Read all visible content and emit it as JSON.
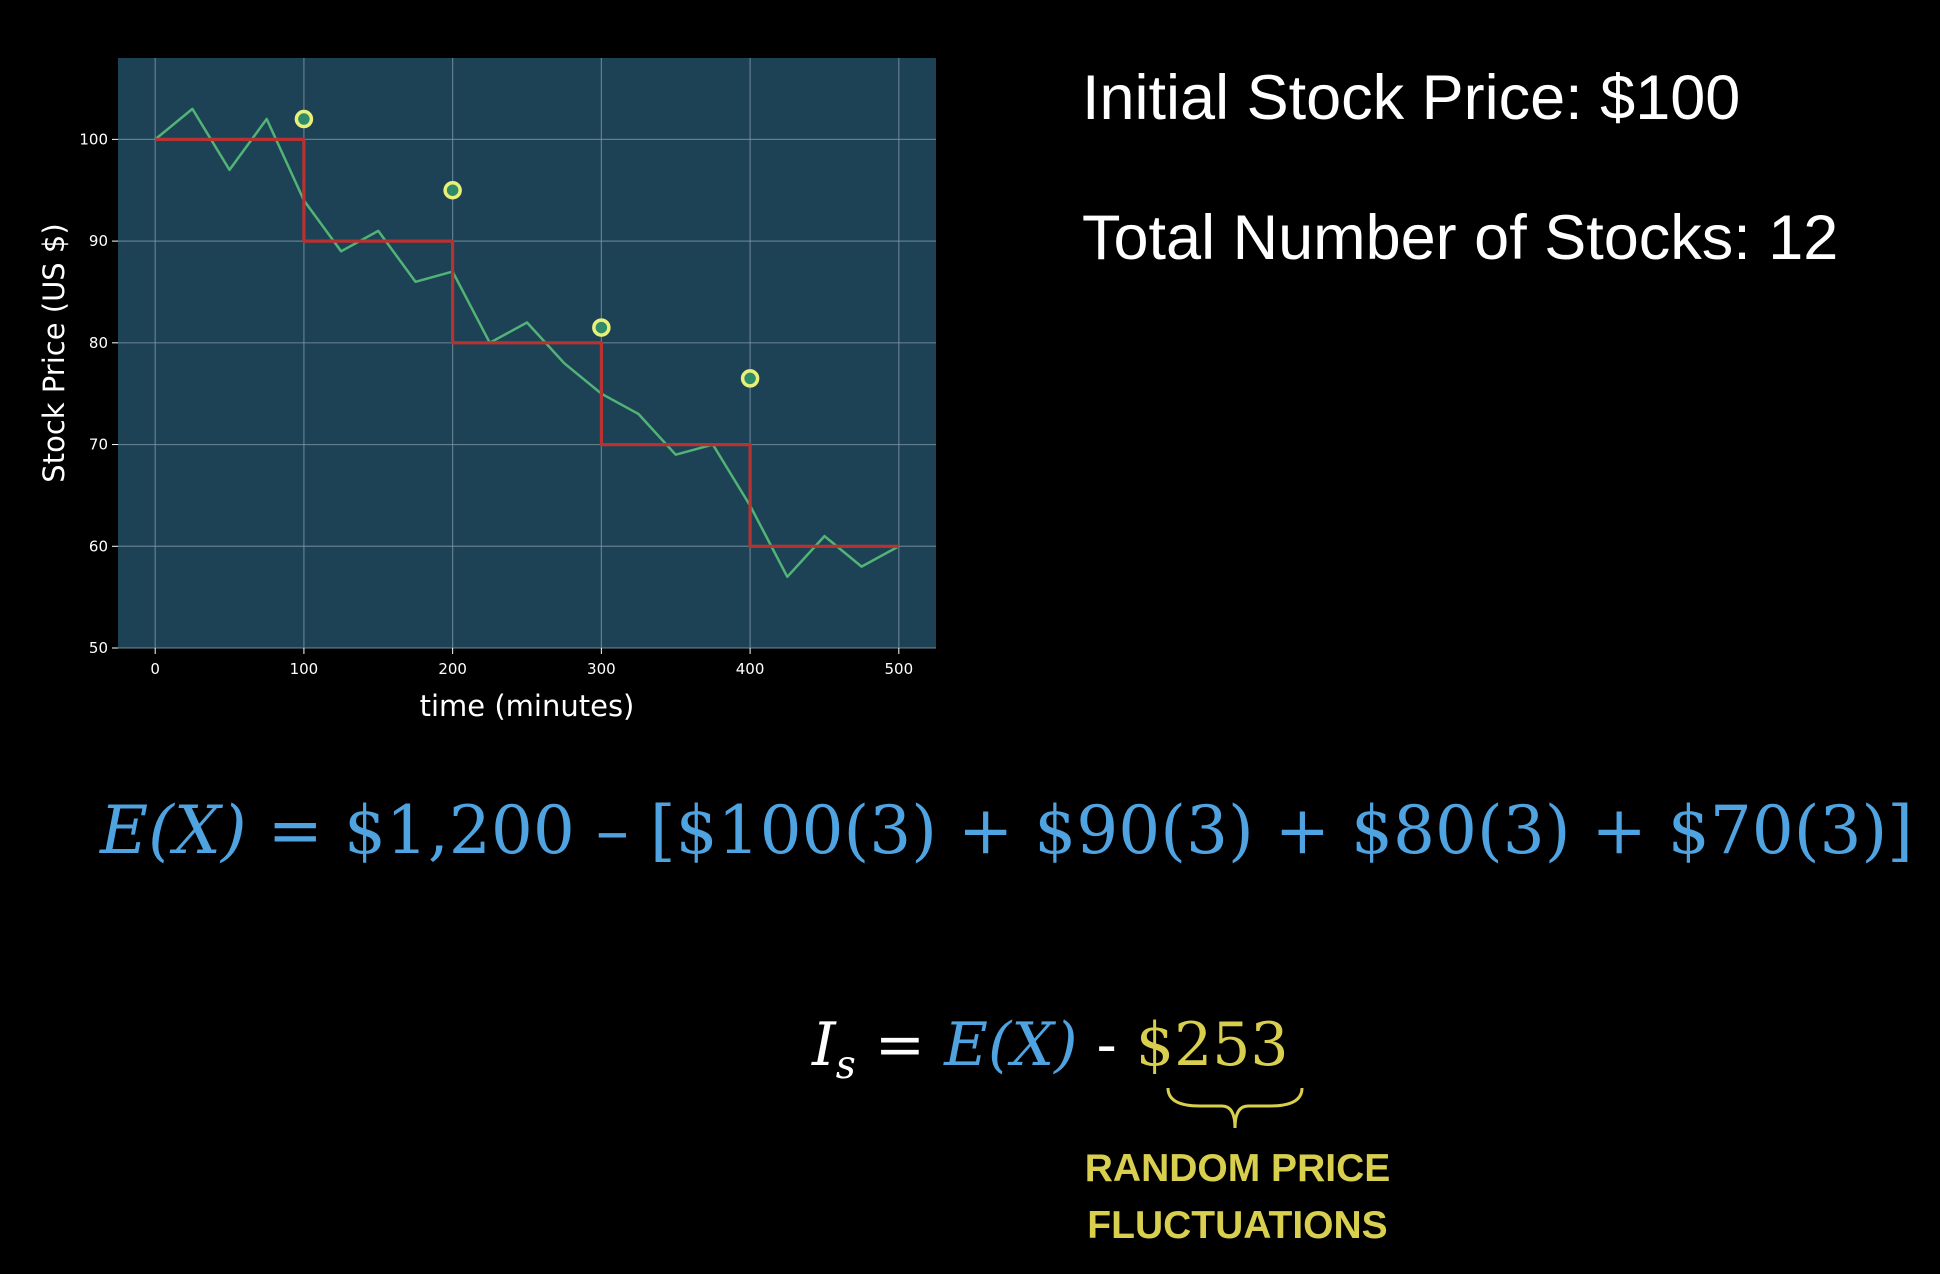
{
  "chart_data": {
    "type": "line",
    "xlabel": "time (minutes)",
    "ylabel": "Stock Price (US $)",
    "xlim": [
      -25,
      525
    ],
    "ylim": [
      50,
      108
    ],
    "x_ticks": [
      0,
      100,
      200,
      300,
      400,
      500
    ],
    "y_ticks": [
      50,
      60,
      70,
      80,
      90,
      100
    ],
    "grid": true,
    "background": "#1d4256",
    "series": [
      {
        "values": [
          [
            0,
            100
          ],
          [
            25,
            103
          ],
          [
            50,
            97
          ],
          [
            75,
            102
          ],
          [
            100,
            94
          ],
          [
            125,
            89
          ],
          [
            150,
            91
          ],
          [
            175,
            86
          ],
          [
            200,
            87
          ],
          [
            225,
            80
          ],
          [
            250,
            82
          ],
          [
            275,
            78
          ],
          [
            300,
            75
          ],
          [
            325,
            73
          ],
          [
            350,
            69
          ],
          [
            375,
            70
          ],
          [
            400,
            64
          ],
          [
            425,
            57
          ],
          [
            450,
            61
          ],
          [
            475,
            58
          ],
          [
            500,
            60
          ]
        ],
        "color": "#58c07a"
      },
      {
        "values": [
          [
            0,
            100
          ],
          [
            100,
            100
          ],
          [
            100,
            90
          ],
          [
            200,
            90
          ],
          [
            200,
            80
          ],
          [
            300,
            80
          ],
          [
            300,
            70
          ],
          [
            400,
            70
          ],
          [
            400,
            60
          ],
          [
            500,
            60
          ]
        ],
        "color": "#b83232"
      }
    ],
    "markers": [
      {
        "x": 100,
        "y": 102
      },
      {
        "x": 200,
        "y": 95
      },
      {
        "x": 300,
        "y": 81.5
      },
      {
        "x": 400,
        "y": 76.5
      }
    ],
    "marker_color": "#e8f07a"
  },
  "info": {
    "line1": "Initial Stock Price: $100",
    "line2": "Total Number of Stocks: 12"
  },
  "equation1": {
    "lhs": "E(X)",
    "eq": " = ",
    "rhs": " $1,200 – [$100(3) + $90(3) + $80(3) + $70(3)]"
  },
  "equation2": {
    "lhs_base": "I",
    "lhs_sub": "s",
    "eq": " = ",
    "ex": "E(X)",
    "minus": " - ",
    "value": "$253"
  },
  "note": {
    "line1": "RANDOM PRICE",
    "line2": "FLUCTUATIONS"
  }
}
